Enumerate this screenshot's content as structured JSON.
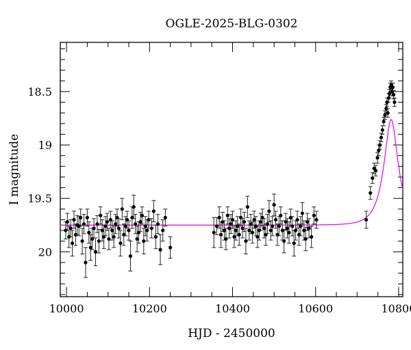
{
  "chart_data": {
    "type": "scatter",
    "title": "OGLE-2025-BLG-0302",
    "xlabel": "HJD - 2450000",
    "ylabel": "I magnitude",
    "xlim": [
      9985,
      10810
    ],
    "ylim": [
      20.42,
      18.04
    ],
    "y_inverted": true,
    "x_ticks": [
      10000,
      10200,
      10400,
      10600,
      10800
    ],
    "x_tick_labels": [
      "10000",
      "10200",
      "10400",
      "10600",
      "10800"
    ],
    "y_ticks": [
      18.5,
      19,
      19.5,
      20
    ],
    "y_tick_labels": [
      "18.5",
      "19",
      "19.5",
      "20"
    ],
    "x_minor_step": 50,
    "y_minor_step": 0.1,
    "grid": false,
    "colors": {
      "points": "#000000",
      "model": "#e400e4"
    },
    "series": [
      {
        "type": "scatter-errorbars",
        "x": [
          9998,
          10002,
          10006,
          10010,
          10014,
          10018,
          10022,
          10026,
          10030,
          10034,
          10038,
          10042,
          10046,
          10050,
          10054,
          10058,
          10062,
          10066,
          10070,
          10074,
          10078,
          10082,
          10086,
          10090,
          10094,
          10098,
          10102,
          10106,
          10110,
          10114,
          10118,
          10122,
          10126,
          10130,
          10134,
          10138,
          10142,
          10146,
          10150,
          10154,
          10158,
          10162,
          10166,
          10170,
          10174,
          10178,
          10182,
          10186,
          10190,
          10194,
          10198,
          10205,
          10210,
          10215,
          10220,
          10226,
          10232,
          10238,
          10250,
          10355,
          10362,
          10368,
          10372,
          10376,
          10380,
          10384,
          10388,
          10392,
          10396,
          10400,
          10404,
          10408,
          10412,
          10416,
          10420,
          10424,
          10428,
          10432,
          10436,
          10440,
          10444,
          10448,
          10452,
          10456,
          10460,
          10464,
          10468,
          10472,
          10476,
          10480,
          10484,
          10488,
          10492,
          10496,
          10500,
          10504,
          10508,
          10512,
          10516,
          10520,
          10524,
          10528,
          10532,
          10536,
          10540,
          10544,
          10548,
          10552,
          10556,
          10560,
          10564,
          10568,
          10572,
          10576,
          10580,
          10584,
          10590,
          10596,
          10602,
          10722,
          10732,
          10737,
          10741,
          10745,
          10749,
          10752,
          10755,
          10758,
          10761,
          10764,
          10767,
          10770,
          10772,
          10774,
          10776,
          10778,
          10780,
          10782,
          10784,
          10786,
          10788,
          10790
        ],
        "y": [
          19.8,
          19.72,
          19.86,
          19.78,
          19.92,
          19.7,
          19.84,
          19.75,
          19.76,
          19.68,
          19.9,
          19.74,
          20.1,
          19.68,
          19.82,
          19.96,
          19.88,
          19.78,
          20.0,
          19.74,
          19.9,
          19.66,
          19.8,
          19.86,
          19.76,
          19.72,
          19.88,
          19.7,
          19.8,
          19.86,
          19.74,
          19.68,
          19.78,
          19.92,
          19.6,
          19.84,
          19.76,
          19.7,
          19.8,
          20.04,
          19.68,
          19.58,
          19.74,
          19.88,
          19.82,
          19.72,
          19.66,
          19.9,
          19.76,
          19.8,
          19.7,
          19.78,
          19.62,
          19.86,
          19.74,
          19.98,
          19.8,
          19.68,
          19.96,
          19.82,
          19.76,
          19.68,
          19.84,
          19.72,
          19.8,
          19.88,
          19.66,
          19.78,
          19.74,
          19.7,
          19.86,
          19.8,
          19.76,
          19.84,
          19.68,
          19.78,
          19.72,
          19.9,
          19.58,
          19.8,
          19.74,
          19.82,
          19.7,
          19.76,
          19.86,
          19.8,
          19.72,
          19.68,
          19.78,
          19.84,
          19.74,
          19.62,
          19.8,
          19.76,
          19.56,
          19.7,
          19.84,
          19.76,
          19.66,
          19.8,
          19.9,
          19.72,
          19.78,
          19.82,
          19.68,
          19.76,
          19.92,
          19.8,
          19.7,
          19.84,
          19.76,
          19.64,
          19.8,
          19.88,
          19.72,
          19.78,
          19.86,
          19.66,
          19.7,
          19.7,
          19.45,
          19.31,
          19.22,
          19.24,
          19.12,
          19.05,
          19.0,
          18.93,
          18.86,
          18.78,
          18.72,
          18.66,
          18.6,
          18.7,
          18.56,
          18.52,
          18.46,
          18.44,
          18.5,
          18.46,
          18.53,
          18.6
        ],
        "y_err": [
          0.08,
          0.08,
          0.1,
          0.08,
          0.12,
          0.08,
          0.1,
          0.09,
          0.09,
          0.08,
          0.12,
          0.09,
          0.14,
          0.08,
          0.1,
          0.12,
          0.1,
          0.09,
          0.13,
          0.08,
          0.11,
          0.08,
          0.1,
          0.11,
          0.09,
          0.08,
          0.1,
          0.08,
          0.09,
          0.1,
          0.09,
          0.08,
          0.09,
          0.12,
          0.1,
          0.1,
          0.09,
          0.08,
          0.09,
          0.14,
          0.1,
          0.11,
          0.09,
          0.12,
          0.1,
          0.09,
          0.08,
          0.12,
          0.09,
          0.1,
          0.08,
          0.09,
          0.1,
          0.11,
          0.09,
          0.14,
          0.1,
          0.08,
          0.1,
          0.14,
          0.08,
          0.1,
          0.12,
          0.09,
          0.09,
          0.1,
          0.08,
          0.09,
          0.09,
          0.08,
          0.1,
          0.09,
          0.09,
          0.1,
          0.08,
          0.09,
          0.09,
          0.12,
          0.1,
          0.09,
          0.09,
          0.1,
          0.08,
          0.09,
          0.1,
          0.09,
          0.08,
          0.08,
          0.09,
          0.1,
          0.09,
          0.1,
          0.09,
          0.09,
          0.1,
          0.08,
          0.1,
          0.09,
          0.08,
          0.09,
          0.11,
          0.08,
          0.09,
          0.1,
          0.08,
          0.09,
          0.12,
          0.09,
          0.08,
          0.1,
          0.09,
          0.1,
          0.09,
          0.11,
          0.08,
          0.09,
          0.1,
          0.08,
          0.08,
          0.08,
          0.06,
          0.05,
          0.05,
          0.05,
          0.05,
          0.05,
          0.04,
          0.04,
          0.04,
          0.04,
          0.04,
          0.04,
          0.04,
          0.04,
          0.04,
          0.04,
          0.04,
          0.04,
          0.04,
          0.04,
          0.04,
          0.04
        ]
      },
      {
        "type": "line",
        "model": "point-lens microlensing fit",
        "baseline": 19.75,
        "t0": 10782,
        "tE": 32,
        "u0": 0.43
      }
    ]
  }
}
